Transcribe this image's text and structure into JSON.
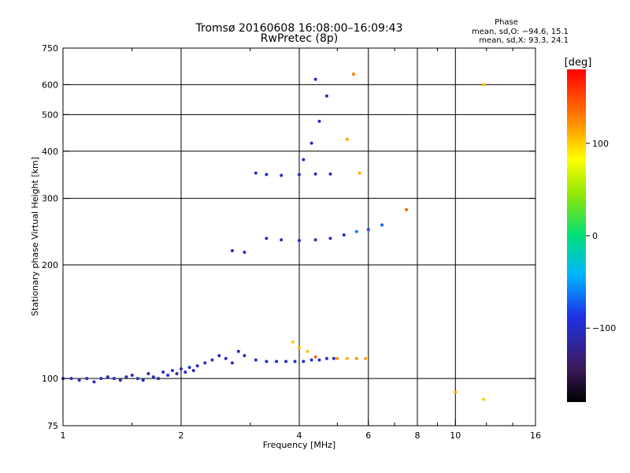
{
  "chart_data": {
    "type": "scatter",
    "title": "Tromsø 20160608 16:08:00–16:09:43",
    "subtitle": "RwPretec (8p)",
    "phase_heading": "Phase",
    "phase_stats": [
      "mean, sd,O: −94.6, 15.1",
      "mean, sd,X:  93.3, 24.1"
    ],
    "xlabel": "Frequency [MHz]",
    "ylabel": "Stationary phase Virtual Height [km]",
    "x_scale": "log",
    "y_scale": "log",
    "xlim": [
      1,
      16
    ],
    "ylim": [
      75,
      750
    ],
    "x_ticks": [
      1,
      2,
      4,
      6,
      8,
      10,
      16
    ],
    "x_tick_labels": [
      "1",
      "2",
      "4",
      "6",
      "8",
      "10",
      "16"
    ],
    "x_minor_ticks": [
      1.5,
      3,
      5,
      7,
      9,
      12,
      14
    ],
    "y_ticks": [
      75,
      100,
      200,
      300,
      400,
      500,
      600,
      750
    ],
    "y_tick_labels": [
      "75",
      "100",
      "200",
      "300",
      "400",
      "500",
      "600",
      "750"
    ],
    "grid": true,
    "colorbar": {
      "label": "[deg]",
      "range": [
        -180,
        180
      ],
      "ticks": [
        100,
        0,
        -100
      ],
      "tick_labels": [
        "100",
        "0",
        "−100"
      ]
    },
    "series": [
      {
        "values": [
          {
            "x": 1.0,
            "y": 100,
            "phase": -110
          },
          {
            "x": 1.05,
            "y": 100,
            "phase": -105
          },
          {
            "x": 1.1,
            "y": 99,
            "phase": -100
          },
          {
            "x": 1.15,
            "y": 100,
            "phase": -110
          },
          {
            "x": 1.2,
            "y": 98,
            "phase": -100
          },
          {
            "x": 1.25,
            "y": 100,
            "phase": -95
          },
          {
            "x": 1.3,
            "y": 101,
            "phase": -110
          },
          {
            "x": 1.35,
            "y": 100,
            "phase": -100
          },
          {
            "x": 1.4,
            "y": 99,
            "phase": -105
          },
          {
            "x": 1.45,
            "y": 101,
            "phase": -110
          },
          {
            "x": 1.5,
            "y": 102,
            "phase": -100
          },
          {
            "x": 1.55,
            "y": 100,
            "phase": -95
          },
          {
            "x": 1.6,
            "y": 99,
            "phase": -110
          },
          {
            "x": 1.65,
            "y": 103,
            "phase": -105
          },
          {
            "x": 1.7,
            "y": 101,
            "phase": -100
          },
          {
            "x": 1.75,
            "y": 100,
            "phase": -110
          },
          {
            "x": 1.8,
            "y": 104,
            "phase": -100
          },
          {
            "x": 1.85,
            "y": 102,
            "phase": -100
          },
          {
            "x": 1.9,
            "y": 105,
            "phase": -95
          },
          {
            "x": 1.95,
            "y": 103,
            "phase": -110
          },
          {
            "x": 2.0,
            "y": 106,
            "phase": -105
          },
          {
            "x": 2.05,
            "y": 104,
            "phase": -100
          },
          {
            "x": 2.1,
            "y": 107,
            "phase": -95
          },
          {
            "x": 2.15,
            "y": 105,
            "phase": -100
          },
          {
            "x": 2.2,
            "y": 108,
            "phase": -100
          },
          {
            "x": 2.3,
            "y": 110,
            "phase": -100
          },
          {
            "x": 2.4,
            "y": 112,
            "phase": -95
          },
          {
            "x": 2.5,
            "y": 115,
            "phase": -100
          },
          {
            "x": 2.6,
            "y": 113,
            "phase": -105
          },
          {
            "x": 2.7,
            "y": 110,
            "phase": -100
          },
          {
            "x": 2.8,
            "y": 118,
            "phase": -110
          },
          {
            "x": 2.9,
            "y": 115,
            "phase": -100
          }
        ]
      },
      {
        "values": [
          {
            "x": 3.1,
            "y": 112,
            "phase": -100
          },
          {
            "x": 3.3,
            "y": 111,
            "phase": -100
          },
          {
            "x": 3.5,
            "y": 111,
            "phase": -95
          },
          {
            "x": 3.7,
            "y": 111,
            "phase": -100
          },
          {
            "x": 3.9,
            "y": 111,
            "phase": -100
          },
          {
            "x": 4.1,
            "y": 111,
            "phase": -100
          },
          {
            "x": 4.3,
            "y": 112,
            "phase": -95
          },
          {
            "x": 4.5,
            "y": 112,
            "phase": -100
          },
          {
            "x": 4.7,
            "y": 113,
            "phase": -100
          },
          {
            "x": 4.9,
            "y": 113,
            "phase": -95
          }
        ]
      },
      {
        "values": [
          {
            "x": 5.0,
            "y": 113,
            "phase": 120
          },
          {
            "x": 5.3,
            "y": 113,
            "phase": 110
          },
          {
            "x": 5.6,
            "y": 113,
            "phase": 120
          },
          {
            "x": 5.9,
            "y": 113,
            "phase": 115
          },
          {
            "x": 3.85,
            "y": 125,
            "phase": 100
          },
          {
            "x": 4.0,
            "y": 121,
            "phase": 110
          },
          {
            "x": 4.2,
            "y": 118,
            "phase": 105
          },
          {
            "x": 4.4,
            "y": 114,
            "phase": 140
          }
        ]
      },
      {
        "values": [
          {
            "x": 3.1,
            "y": 350,
            "phase": -100
          },
          {
            "x": 3.3,
            "y": 347,
            "phase": -100
          },
          {
            "x": 3.6,
            "y": 345,
            "phase": -95
          },
          {
            "x": 4.0,
            "y": 347,
            "phase": -100
          },
          {
            "x": 4.4,
            "y": 348,
            "phase": -100
          },
          {
            "x": 4.8,
            "y": 348,
            "phase": -100
          },
          {
            "x": 4.1,
            "y": 380,
            "phase": -100
          },
          {
            "x": 4.3,
            "y": 420,
            "phase": -100
          },
          {
            "x": 4.5,
            "y": 480,
            "phase": -95
          },
          {
            "x": 4.7,
            "y": 560,
            "phase": -100
          },
          {
            "x": 4.4,
            "y": 620,
            "phase": -100
          }
        ]
      },
      {
        "values": [
          {
            "x": 3.3,
            "y": 235,
            "phase": -100
          },
          {
            "x": 3.6,
            "y": 233,
            "phase": -100
          },
          {
            "x": 4.0,
            "y": 232,
            "phase": -95
          },
          {
            "x": 4.4,
            "y": 233,
            "phase": -100
          },
          {
            "x": 4.8,
            "y": 235,
            "phase": -100
          },
          {
            "x": 5.2,
            "y": 240,
            "phase": -90
          },
          {
            "x": 5.6,
            "y": 245,
            "phase": -60
          },
          {
            "x": 6.0,
            "y": 248,
            "phase": -80
          },
          {
            "x": 6.5,
            "y": 255,
            "phase": -70
          },
          {
            "x": 2.7,
            "y": 218,
            "phase": -100
          },
          {
            "x": 2.9,
            "y": 216,
            "phase": -100
          }
        ]
      },
      {
        "values": [
          {
            "x": 5.7,
            "y": 350,
            "phase": 110
          },
          {
            "x": 5.3,
            "y": 430,
            "phase": 115
          },
          {
            "x": 5.5,
            "y": 640,
            "phase": 130
          },
          {
            "x": 7.5,
            "y": 280,
            "phase": 140
          },
          {
            "x": 10.0,
            "y": 92,
            "phase": 115
          },
          {
            "x": 11.8,
            "y": 600,
            "phase": 105
          },
          {
            "x": 11.8,
            "y": 88,
            "phase": 100
          }
        ]
      }
    ]
  }
}
